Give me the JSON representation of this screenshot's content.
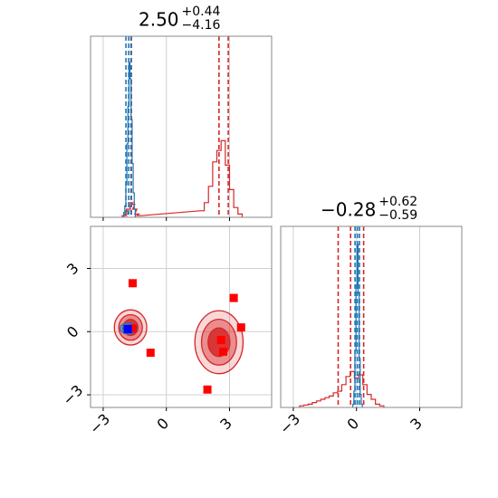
{
  "chart_data": {
    "type": "scatter",
    "panels": {
      "param1_title": {
        "median": "2.50",
        "plus": "+0.44",
        "minus": "−4.16"
      },
      "param2_title": {
        "median": "−0.28",
        "plus": "+0.62",
        "minus": "−0.59"
      }
    },
    "axis_range": {
      "param1": [
        -3.6,
        5.0
      ],
      "param2": [
        -3.6,
        5.0
      ]
    },
    "ticks": {
      "values": [
        -3,
        0,
        3
      ],
      "labels": [
        "−3",
        "0",
        "3"
      ]
    },
    "grid": true,
    "series": [
      {
        "color": "#d62728",
        "hist1": [
          [
            -2.0,
            0.01
          ],
          [
            -1.9,
            0.02
          ],
          [
            -1.8,
            0.05
          ],
          [
            -1.7,
            0.09
          ],
          [
            -1.6,
            0.08
          ],
          [
            -1.5,
            0.05
          ],
          [
            -1.4,
            0.02
          ],
          [
            -1.3,
            0.01
          ],
          [
            1.7,
            0.04
          ],
          [
            1.9,
            0.09
          ],
          [
            2.1,
            0.19
          ],
          [
            2.3,
            0.34
          ],
          [
            2.5,
            0.41
          ],
          [
            2.7,
            0.47
          ],
          [
            2.9,
            0.32
          ],
          [
            3.1,
            0.17
          ],
          [
            3.3,
            0.06
          ],
          [
            3.5,
            0.02
          ]
        ],
        "hist1_quantiles": [
          -1.66,
          2.5,
          2.94
        ],
        "hist2": [
          [
            -2.6,
            0.01
          ],
          [
            -2.4,
            0.015
          ],
          [
            -2.2,
            0.02
          ],
          [
            -2.0,
            0.03
          ],
          [
            -1.8,
            0.04
          ],
          [
            -1.6,
            0.05
          ],
          [
            -1.4,
            0.06
          ],
          [
            -1.2,
            0.07
          ],
          [
            -1.0,
            0.09
          ],
          [
            -0.8,
            0.1
          ],
          [
            -0.6,
            0.14
          ],
          [
            -0.4,
            0.19
          ],
          [
            -0.2,
            0.22
          ],
          [
            0.0,
            0.18
          ],
          [
            0.2,
            0.2
          ],
          [
            0.4,
            0.14
          ],
          [
            0.6,
            0.08
          ],
          [
            0.8,
            0.05
          ],
          [
            1.0,
            0.02
          ],
          [
            1.2,
            0.01
          ]
        ],
        "hist2_quantiles": [
          -0.87,
          -0.28,
          0.34
        ],
        "modes": [
          {
            "center": [
              -1.7,
              0.2
            ],
            "spread": [
              0.35,
              0.38
            ]
          },
          {
            "center": [
              2.5,
              -0.5
            ],
            "spread": [
              0.52,
              0.68
            ]
          }
        ]
      },
      {
        "color": "#1f77b4",
        "hist1": [
          [
            -2.0,
            0.03
          ],
          [
            -1.95,
            0.07
          ],
          [
            -1.9,
            0.2
          ],
          [
            -1.85,
            0.45
          ],
          [
            -1.8,
            0.68
          ],
          [
            -1.75,
            0.95
          ],
          [
            -1.7,
            0.85
          ],
          [
            -1.65,
            0.6
          ],
          [
            -1.6,
            0.33
          ],
          [
            -1.55,
            0.15
          ],
          [
            -1.5,
            0.05
          ]
        ],
        "hist1_quantiles": [
          -1.92,
          -1.79,
          -1.68
        ],
        "hist2": [
          [
            -0.15,
            0.02
          ],
          [
            -0.1,
            0.1
          ],
          [
            -0.05,
            0.35
          ],
          [
            0.0,
            0.75
          ],
          [
            0.05,
            1.0
          ],
          [
            0.1,
            0.7
          ],
          [
            0.15,
            0.3
          ],
          [
            0.2,
            0.08
          ],
          [
            0.25,
            0.02
          ]
        ],
        "hist2_quantiles": [
          -0.07,
          0.04,
          0.14
        ],
        "modes": [
          {
            "center": [
              -1.8,
              0.15
            ],
            "spread": [
              0.18,
              0.12
            ]
          }
        ]
      }
    ],
    "truth_points_red": [
      [
        -1.6,
        2.3
      ],
      [
        -0.75,
        -1.0
      ],
      [
        3.2,
        1.6
      ],
      [
        3.55,
        0.2
      ],
      [
        2.6,
        -0.4
      ],
      [
        2.7,
        -0.95
      ],
      [
        1.95,
        -2.75
      ],
      [
        -1.6,
        0.15
      ]
    ],
    "truth_points_blue": [
      [
        -1.83,
        0.12
      ]
    ]
  }
}
